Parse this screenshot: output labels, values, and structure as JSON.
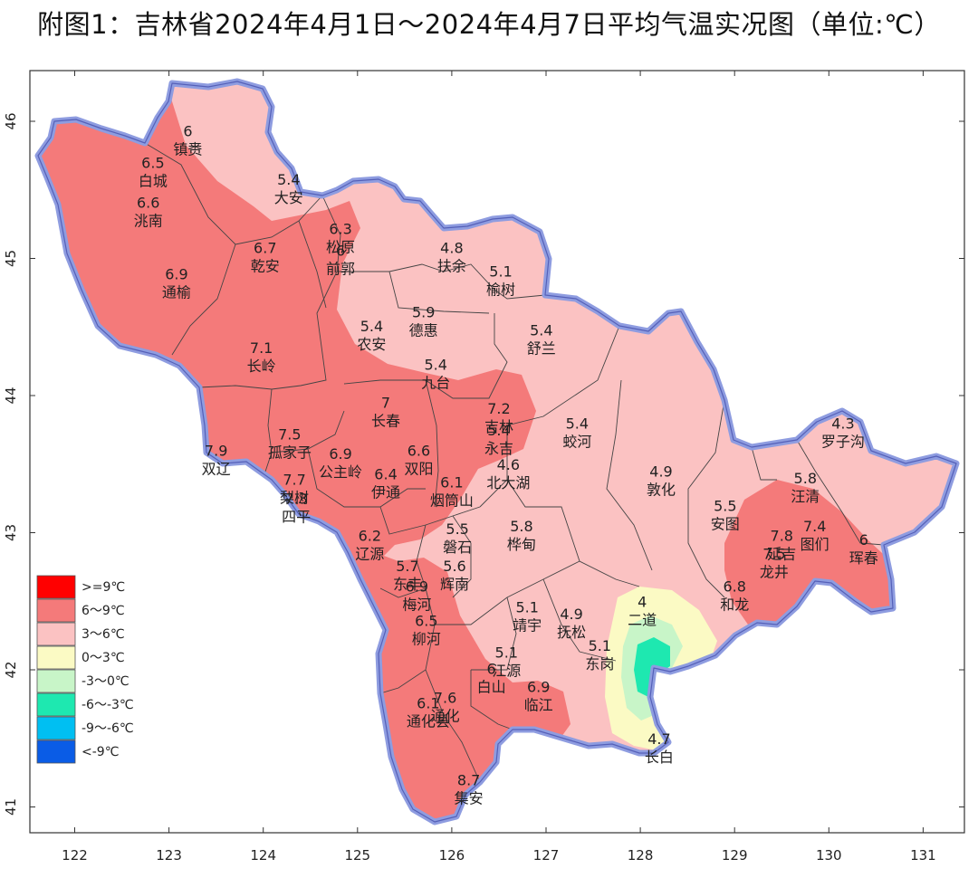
{
  "title": "附图1：吉林省2024年4月1日～2024年4月7日平均气温实况图（单位:℃）",
  "x_ticks": [
    "122",
    "123",
    "124",
    "125",
    "126",
    "127",
    "128",
    "129",
    "130",
    "131"
  ],
  "y_ticks": [
    "46",
    "45",
    "44",
    "43",
    "42",
    "41"
  ],
  "legend": [
    {
      "label": ">=9℃",
      "color": "#ff0000"
    },
    {
      "label": "6～9℃",
      "color": "#f47a7a"
    },
    {
      "label": "3～6℃",
      "color": "#fbc2c2"
    },
    {
      "label": "0～3℃",
      "color": "#fbfac4"
    },
    {
      "label": "-3～0℃",
      "color": "#c8f5c8"
    },
    {
      "label": "-6～-3℃",
      "color": "#1ee8b0"
    },
    {
      "label": "-9～-6℃",
      "color": "#00bff2"
    },
    {
      "label": "<-9℃",
      "color": "#0a5ce6"
    }
  ],
  "stations": [
    {
      "name": "镇赉",
      "value": "6",
      "lon": 123.2,
      "lat": 45.85
    },
    {
      "name": "白城",
      "value": "6.5",
      "lon": 122.83,
      "lat": 45.62
    },
    {
      "name": "洮南",
      "value": "6.6",
      "lon": 122.78,
      "lat": 45.33
    },
    {
      "name": "大安",
      "value": "5.4",
      "lon": 124.27,
      "lat": 45.5
    },
    {
      "name": "松原",
      "value": "6.3",
      "lon": 124.82,
      "lat": 45.14
    },
    {
      "name": "乾安",
      "value": "6.7",
      "lon": 124.02,
      "lat": 45.0
    },
    {
      "name": "前郭",
      "value": "6",
      "lon": 124.82,
      "lat": 44.98
    },
    {
      "name": "通榆",
      "value": "6.9",
      "lon": 123.08,
      "lat": 44.81
    },
    {
      "name": "扶余",
      "value": "4.8",
      "lon": 126.0,
      "lat": 45.0
    },
    {
      "name": "榆树",
      "value": "5.1",
      "lon": 126.52,
      "lat": 44.83
    },
    {
      "name": "德惠",
      "value": "5.9",
      "lon": 125.7,
      "lat": 44.53
    },
    {
      "name": "农安",
      "value": "5.4",
      "lon": 125.15,
      "lat": 44.43
    },
    {
      "name": "舒兰",
      "value": "5.4",
      "lon": 126.95,
      "lat": 44.4
    },
    {
      "name": "九台",
      "value": "5.4",
      "lon": 125.83,
      "lat": 44.15
    },
    {
      "name": "长岭",
      "value": "7.1",
      "lon": 123.98,
      "lat": 44.27
    },
    {
      "name": "长春",
      "value": "7",
      "lon": 125.3,
      "lat": 43.87
    },
    {
      "name": "孤家子",
      "value": "7.5",
      "lon": 124.28,
      "lat": 43.64
    },
    {
      "name": "双辽",
      "value": "7.9",
      "lon": 123.5,
      "lat": 43.52
    },
    {
      "name": "公主岭",
      "value": "6.9",
      "lon": 124.82,
      "lat": 43.5
    },
    {
      "name": "双阳",
      "value": "6.6",
      "lon": 125.65,
      "lat": 43.52
    },
    {
      "name": "吉林",
      "value": "7.2",
      "lon": 126.5,
      "lat": 43.83
    },
    {
      "name": "永吉",
      "value": "5.4",
      "lon": 126.5,
      "lat": 43.67
    },
    {
      "name": "北大湖",
      "value": "4.6",
      "lon": 126.6,
      "lat": 43.42
    },
    {
      "name": "蛟河",
      "value": "5.4",
      "lon": 127.33,
      "lat": 43.72
    },
    {
      "name": "梨树",
      "value": "7.7",
      "lon": 124.33,
      "lat": 43.31
    },
    {
      "name": "伊通",
      "value": "6.4",
      "lon": 125.3,
      "lat": 43.35
    },
    {
      "name": "烟筒山",
      "value": "6.1",
      "lon": 126.0,
      "lat": 43.29
    },
    {
      "name": "四平",
      "value": "7.3",
      "lon": 124.35,
      "lat": 43.17
    },
    {
      "name": "辽源",
      "value": "6.2",
      "lon": 125.13,
      "lat": 42.9
    },
    {
      "name": "磐石",
      "value": "5.5",
      "lon": 126.06,
      "lat": 42.95
    },
    {
      "name": "桦甸",
      "value": "5.8",
      "lon": 126.74,
      "lat": 42.97
    },
    {
      "name": "敦化",
      "value": "4.9",
      "lon": 128.22,
      "lat": 43.37
    },
    {
      "name": "汪清",
      "value": "5.8",
      "lon": 129.75,
      "lat": 43.32
    },
    {
      "name": "罗子沟",
      "value": "4.3",
      "lon": 130.15,
      "lat": 43.72
    },
    {
      "name": "安图",
      "value": "5.5",
      "lon": 128.9,
      "lat": 43.12
    },
    {
      "name": "图们",
      "value": "7.4",
      "lon": 129.85,
      "lat": 42.97
    },
    {
      "name": "珲春",
      "value": "6",
      "lon": 130.37,
      "lat": 42.87
    },
    {
      "name": "延吉",
      "value": "7.8",
      "lon": 129.5,
      "lat": 42.9
    },
    {
      "name": "龙井",
      "value": "7.5",
      "lon": 129.42,
      "lat": 42.77
    },
    {
      "name": "东丰",
      "value": "5.7",
      "lon": 125.53,
      "lat": 42.68
    },
    {
      "name": "辉南",
      "value": "5.6",
      "lon": 126.03,
      "lat": 42.68
    },
    {
      "name": "梅河",
      "value": "6.9",
      "lon": 125.63,
      "lat": 42.53
    },
    {
      "name": "二道",
      "value": "4",
      "lon": 128.02,
      "lat": 42.42
    },
    {
      "name": "和龙",
      "value": "6.8",
      "lon": 129.0,
      "lat": 42.53
    },
    {
      "name": "靖宇",
      "value": "5.1",
      "lon": 126.8,
      "lat": 42.38
    },
    {
      "name": "抚松",
      "value": "4.9",
      "lon": 127.27,
      "lat": 42.33
    },
    {
      "name": "柳河",
      "value": "6.5",
      "lon": 125.73,
      "lat": 42.28
    },
    {
      "name": "东岗",
      "value": "5.1",
      "lon": 127.57,
      "lat": 42.1
    },
    {
      "name": "江源",
      "value": "5.1",
      "lon": 126.58,
      "lat": 42.05
    },
    {
      "name": "白山",
      "value": "6",
      "lon": 126.42,
      "lat": 41.93
    },
    {
      "name": "临江",
      "value": "6.9",
      "lon": 126.92,
      "lat": 41.8
    },
    {
      "name": "通化县",
      "value": "6.1",
      "lon": 125.75,
      "lat": 41.68
    },
    {
      "name": "通化",
      "value": "7.6",
      "lon": 125.93,
      "lat": 41.72
    },
    {
      "name": "长白",
      "value": "4.7",
      "lon": 128.2,
      "lat": 41.42
    },
    {
      "name": "集安",
      "value": "8.7",
      "lon": 126.18,
      "lat": 41.12
    }
  ]
}
